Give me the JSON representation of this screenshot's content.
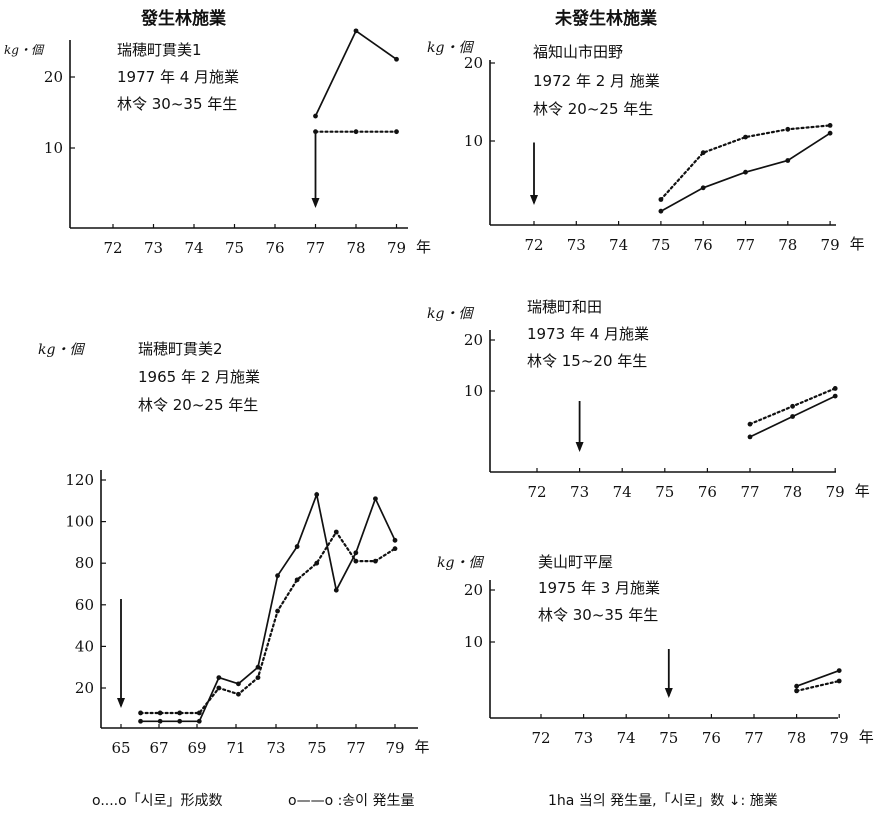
{
  "headers": {
    "left": "發生林施業",
    "right": "未發生林施業"
  },
  "footer": {
    "legend_shiro": "o....o「시로」形成数",
    "legend_matsutake": "o——o :송이 発生量",
    "note": "1ha 当의 発生量,「시로」数 ↓: 施業"
  },
  "chart_data": [
    {
      "id": "p1",
      "type": "line",
      "unit_label": "kg・個",
      "info": [
        "瑞穂町貫美1",
        "1977 年 4 月施業",
        "林令 30~35 年生"
      ],
      "x_ticks": [
        "72",
        "73",
        "74",
        "75",
        "76",
        "77",
        "78",
        "79"
      ],
      "year_suffix": "年",
      "y_ticks": [
        "20",
        "10"
      ],
      "xlim": [
        71,
        79.8
      ],
      "ylim": [
        0,
        22
      ],
      "treatment_year": 77,
      "series": [
        {
          "style": "dotted",
          "x": [
            77,
            78,
            79
          ],
          "y": [
            12.3,
            12.3,
            12.3
          ]
        },
        {
          "style": "solid",
          "x": [
            77,
            78,
            79
          ],
          "y": [
            14.5,
            26.5,
            22.5
          ]
        }
      ]
    },
    {
      "id": "p2",
      "type": "line",
      "unit_label": "kg・個",
      "info": [
        "福知山市田野",
        "1972 年 2 月 施業",
        "林令 20~25 年生"
      ],
      "x_ticks": [
        "72",
        "73",
        "74",
        "75",
        "76",
        "77",
        "78",
        "79"
      ],
      "year_suffix": "年",
      "y_ticks": [
        "20",
        "10"
      ],
      "xlim": [
        71,
        79.8
      ],
      "ylim": [
        0,
        22
      ],
      "treatment_year": 72,
      "series": [
        {
          "style": "dotted",
          "x": [
            75,
            76,
            77,
            78,
            79
          ],
          "y": [
            2.5,
            8.5,
            10.5,
            11.5,
            12
          ]
        },
        {
          "style": "solid",
          "x": [
            75,
            76,
            77,
            78,
            79
          ],
          "y": [
            1,
            4,
            6,
            7.5,
            11
          ]
        }
      ]
    },
    {
      "id": "p3",
      "type": "line",
      "unit_label": "kg・個",
      "info": [
        "瑞穂町貫美2",
        "1965 年 2 月施業",
        "林令 20~25 年生"
      ],
      "x_ticks": [
        "65",
        "67",
        "69",
        "71",
        "73",
        "75",
        "77",
        "79"
      ],
      "year_suffix": "年",
      "y_ticks": [
        "120",
        "100",
        "80",
        "60",
        "40",
        "20"
      ],
      "xlim": [
        64,
        79.6
      ],
      "ylim": [
        0,
        130
      ],
      "treatment_year": 65,
      "series": [
        {
          "style": "dotted",
          "x": [
            66,
            67,
            68,
            69,
            70,
            71,
            72,
            73,
            74,
            75,
            76,
            77,
            78,
            79
          ],
          "y": [
            8,
            8,
            8,
            8,
            20,
            17,
            25,
            57,
            72,
            80,
            95,
            81,
            81,
            87
          ]
        },
        {
          "style": "solid",
          "x": [
            66,
            67,
            68,
            69,
            70,
            71,
            72,
            73,
            74,
            75,
            76,
            77,
            78,
            79
          ],
          "y": [
            4,
            4,
            4,
            4,
            25,
            22,
            30,
            74,
            88,
            113,
            67,
            85,
            111,
            91
          ]
        }
      ]
    },
    {
      "id": "p4",
      "type": "line",
      "unit_label": "kg・個",
      "info": [
        "瑞穂町和田",
        "1973 年 4 月施業",
        "林令 15~20 年生"
      ],
      "x_ticks": [
        "72",
        "73",
        "74",
        "75",
        "76",
        "77",
        "78",
        "79"
      ],
      "year_suffix": "年",
      "y_ticks": [
        "20",
        "10"
      ],
      "xlim": [
        71,
        79.8
      ],
      "ylim": [
        0,
        22
      ],
      "treatment_year": 73,
      "series": [
        {
          "style": "dotted",
          "x": [
            77,
            78,
            79
          ],
          "y": [
            3.5,
            7,
            10.5
          ]
        },
        {
          "style": "solid",
          "x": [
            77,
            78,
            79
          ],
          "y": [
            1,
            5,
            9
          ]
        }
      ]
    },
    {
      "id": "p5",
      "type": "line",
      "unit_label": "kg・個",
      "info": [
        "美山町平屋",
        "1975 年 3 月施業",
        "林令 30~35 年生"
      ],
      "x_ticks": [
        "72",
        "73",
        "74",
        "75",
        "76",
        "77",
        "78",
        "79"
      ],
      "year_suffix": "年",
      "y_ticks": [
        "20",
        "10"
      ],
      "xlim": [
        71,
        79.8
      ],
      "ylim": [
        0,
        22
      ],
      "treatment_year": 75,
      "series": [
        {
          "style": "dotted",
          "x": [
            78,
            79
          ],
          "y": [
            0.6,
            2.5
          ]
        },
        {
          "style": "solid",
          "x": [
            78,
            79
          ],
          "y": [
            1.5,
            4.5
          ]
        }
      ]
    }
  ]
}
